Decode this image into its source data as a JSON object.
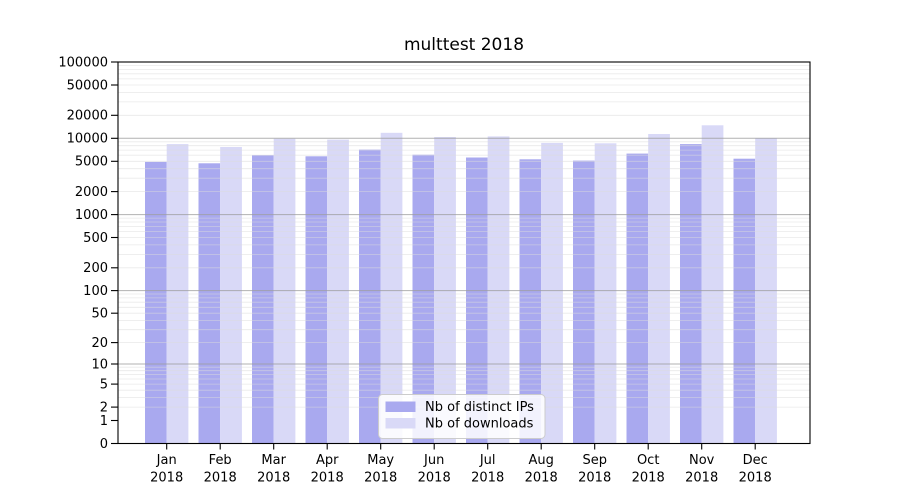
{
  "chart_data": {
    "type": "bar",
    "title": "multtest 2018",
    "categories": [
      "Jan 2018",
      "Feb 2018",
      "Mar 2018",
      "Apr 2018",
      "May 2018",
      "Jun 2018",
      "Jul 2018",
      "Aug 2018",
      "Sep 2018",
      "Oct 2018",
      "Nov 2018",
      "Dec 2018"
    ],
    "series": [
      {
        "name": "Nb of distinct IPs",
        "color": "#a9a9ef",
        "values": [
          4900,
          4700,
          6000,
          5800,
          7100,
          6100,
          5600,
          5300,
          5100,
          6300,
          8400,
          5400
        ]
      },
      {
        "name": "Nb of downloads",
        "color": "#d9d9f7",
        "values": [
          8400,
          7700,
          9900,
          9600,
          11800,
          10400,
          10600,
          8700,
          8600,
          11400,
          14800,
          10100
        ]
      }
    ],
    "y_axis": {
      "scale": "log1p",
      "range": [
        0,
        100000
      ],
      "ticks": [
        100000,
        50000,
        20000,
        10000,
        5000,
        2000,
        1000,
        500,
        200,
        100,
        50,
        20,
        10,
        5,
        2,
        1,
        0
      ],
      "major_gridlines": [
        10,
        100,
        1000,
        10000
      ],
      "minor_gridlines_per_decade": [
        2,
        3,
        4,
        5,
        6,
        7,
        8,
        9
      ]
    },
    "legend": {
      "entries": [
        "Nb of distinct IPs",
        "Nb of downloads"
      ],
      "position": "lower center inside"
    },
    "colors": {
      "axis": "#000000",
      "major_grid": "#9e9e9e",
      "minor_grid": "#dcdcdc",
      "legend_border": "#cccccc",
      "legend_bg": "rgba(255,255,255,0.85)",
      "background": "#ffffff"
    }
  }
}
